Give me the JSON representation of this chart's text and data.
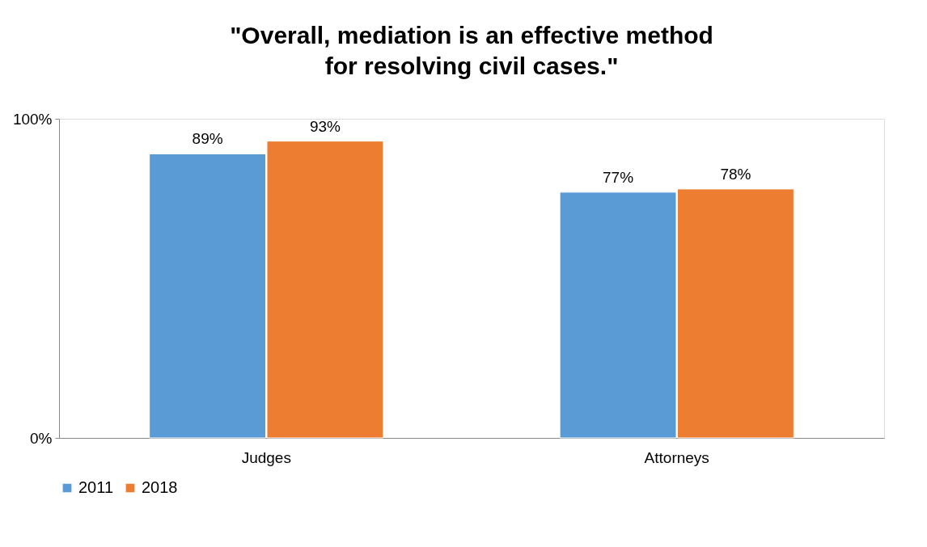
{
  "chart_data": {
    "type": "bar",
    "title": "\"Overall, mediation is an effective method\nfor resolving civil cases.\"",
    "categories": [
      "Judges",
      "Attorneys"
    ],
    "series": [
      {
        "name": "2011",
        "color": "#5b9bd5",
        "values": [
          89,
          77
        ],
        "value_labels": [
          "89%",
          "77%"
        ]
      },
      {
        "name": "2018",
        "color": "#ed7d31",
        "values": [
          93,
          78
        ],
        "value_labels": [
          "93%",
          "78%"
        ]
      }
    ],
    "ylim": [
      0,
      100
    ],
    "yticks": [
      {
        "value": 0,
        "label": "0%"
      },
      {
        "value": 100,
        "label": "100%"
      }
    ],
    "grid": false,
    "legend": "bottom"
  }
}
